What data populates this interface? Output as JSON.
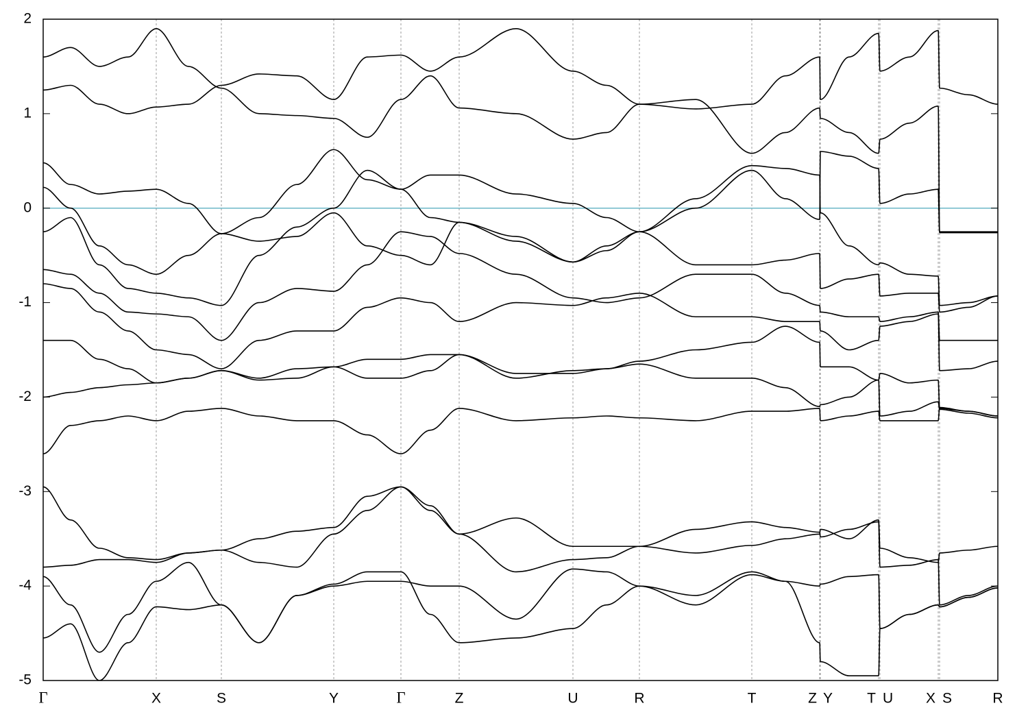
{
  "chart_data": {
    "type": "line",
    "color": "#000000",
    "grid": true,
    "hline": {
      "value": 0,
      "color": "#6bb7c7"
    },
    "xlim": [
      0,
      1393
    ],
    "ylim": [
      -5,
      2
    ],
    "yticks": [
      2,
      1,
      0,
      -1,
      -2,
      -3,
      -4,
      -5
    ],
    "xticks": [
      {
        "value": 0,
        "label": "Γ"
      },
      {
        "value": 165,
        "label": "X"
      },
      {
        "value": 260,
        "label": "S"
      },
      {
        "value": 424,
        "label": "Y"
      },
      {
        "value": 522,
        "label": "Γ"
      },
      {
        "value": 607,
        "label": "Z"
      },
      {
        "value": 773,
        "label": "U"
      },
      {
        "value": 870,
        "label": "R"
      },
      {
        "value": 1034,
        "label": "T"
      },
      {
        "value": 1133,
        "label": "Z"
      },
      {
        "value": 1134,
        "label": "Y"
      },
      {
        "value": 1219,
        "label": "T"
      },
      {
        "value": 1221,
        "label": "U"
      },
      {
        "value": 1306,
        "label": "X"
      },
      {
        "value": 1308,
        "label": "S"
      },
      {
        "value": 1393,
        "label": "R"
      }
    ],
    "x": [
      0,
      40,
      82,
      124,
      165,
      212,
      260,
      315,
      370,
      424,
      473,
      522,
      565,
      607,
      690,
      773,
      822,
      870,
      952,
      1034,
      1083,
      1133,
      1134,
      1176,
      1219,
      1221,
      1264,
      1306,
      1308,
      1350,
      1393
    ],
    "series": [
      {
        "values": [
          1.25,
          1.3,
          1.1,
          1.0,
          1.07,
          1.1,
          1.3,
          1.42,
          1.4,
          1.15,
          1.6,
          1.62,
          1.45,
          1.6,
          1.9,
          1.45,
          1.3,
          1.1,
          1.05,
          1.1,
          1.4,
          1.6,
          1.15,
          1.6,
          1.85,
          1.45,
          1.6,
          1.88,
          1.27,
          1.2,
          1.1
        ]
      },
      {
        "values": [
          1.6,
          1.7,
          1.5,
          1.6,
          1.9,
          1.5,
          1.27,
          1.0,
          0.98,
          0.95,
          0.75,
          1.15,
          1.4,
          1.06,
          1.0,
          0.73,
          0.8,
          1.1,
          1.15,
          0.58,
          0.8,
          1.06,
          0.95,
          0.8,
          0.58,
          0.73,
          0.9,
          1.08,
          -0.25,
          -0.25,
          -0.25
        ]
      },
      {
        "values": [
          0.48,
          0.25,
          0.15,
          0.18,
          0.2,
          0.05,
          -0.27,
          -0.1,
          0.25,
          0.62,
          0.3,
          0.2,
          0.35,
          0.35,
          0.15,
          0.05,
          -0.1,
          -0.25,
          0.0,
          0.4,
          0.1,
          -0.12,
          0.6,
          0.55,
          0.42,
          0.05,
          0.15,
          0.2,
          -0.26,
          -0.26,
          -0.26
        ]
      },
      {
        "values": [
          0.22,
          0.0,
          -0.4,
          -0.6,
          -0.7,
          -0.5,
          -0.27,
          -0.35,
          -0.3,
          -0.05,
          -0.4,
          -0.5,
          -0.6,
          -0.15,
          -0.35,
          -0.57,
          -0.45,
          -0.25,
          0.1,
          0.45,
          0.42,
          0.35,
          -0.05,
          -0.4,
          -0.6,
          -0.58,
          -0.7,
          -0.72,
          -1.03,
          -1.0,
          -0.93
        ]
      },
      {
        "values": [
          -0.25,
          -0.1,
          -0.6,
          -0.85,
          -0.9,
          -0.95,
          -1.03,
          -0.5,
          -0.2,
          0.0,
          0.4,
          0.2,
          -0.1,
          -0.15,
          -0.3,
          -0.57,
          -0.4,
          -0.25,
          -0.6,
          -0.6,
          -0.55,
          -0.48,
          -0.85,
          -0.75,
          -0.7,
          -0.93,
          -0.9,
          -0.9,
          -1.1,
          -1.05,
          -0.93
        ]
      },
      {
        "values": [
          -0.65,
          -0.7,
          -0.9,
          -1.1,
          -1.12,
          -1.15,
          -1.4,
          -1.0,
          -0.85,
          -0.88,
          -0.6,
          -0.25,
          -0.3,
          -0.48,
          -0.7,
          -0.95,
          -1.0,
          -0.95,
          -0.7,
          -0.7,
          -0.9,
          -1.03,
          -1.1,
          -1.15,
          -1.15,
          -1.2,
          -1.15,
          -1.1,
          -1.4,
          -1.4,
          -1.4
        ]
      },
      {
        "values": [
          -0.8,
          -0.85,
          -1.1,
          -1.3,
          -1.5,
          -1.55,
          -1.7,
          -1.4,
          -1.3,
          -1.3,
          -1.05,
          -0.95,
          -1.0,
          -1.2,
          -1.0,
          -1.03,
          -0.95,
          -0.9,
          -1.15,
          -1.15,
          -1.2,
          -1.2,
          -1.3,
          -1.5,
          -1.4,
          -1.25,
          -1.2,
          -1.12,
          -1.72,
          -1.7,
          -1.62
        ]
      },
      {
        "values": [
          -1.4,
          -1.4,
          -1.6,
          -1.7,
          -1.85,
          -1.8,
          -1.72,
          -1.8,
          -1.7,
          -1.68,
          -1.6,
          -1.6,
          -1.55,
          -1.55,
          -1.8,
          -1.72,
          -1.7,
          -1.62,
          -1.5,
          -1.42,
          -1.25,
          -1.42,
          -1.68,
          -1.68,
          -1.82,
          -1.75,
          -1.85,
          -1.82,
          -2.12,
          -2.15,
          -2.2
        ]
      },
      {
        "values": [
          -2.0,
          -1.95,
          -1.9,
          -1.87,
          -1.85,
          -1.8,
          -1.72,
          -1.82,
          -1.8,
          -1.68,
          -1.8,
          -1.8,
          -1.72,
          -1.55,
          -1.75,
          -1.75,
          -1.7,
          -1.65,
          -1.8,
          -1.8,
          -1.9,
          -2.1,
          -2.08,
          -2.0,
          -1.82,
          -2.2,
          -2.15,
          -2.05,
          -2.13,
          -2.17,
          -2.22
        ]
      },
      {
        "values": [
          -2.6,
          -2.3,
          -2.25,
          -2.2,
          -2.25,
          -2.15,
          -2.12,
          -2.2,
          -2.25,
          -2.25,
          -2.4,
          -2.6,
          -2.35,
          -2.12,
          -2.25,
          -2.22,
          -2.2,
          -2.22,
          -2.25,
          -2.15,
          -2.15,
          -2.12,
          -2.25,
          -2.2,
          -2.15,
          -2.25,
          -2.25,
          -2.25,
          -2.11,
          -2.15,
          -2.2
        ]
      },
      {
        "values": [
          -2.95,
          -3.3,
          -3.6,
          -3.7,
          -3.72,
          -3.65,
          -3.62,
          -3.75,
          -3.8,
          -3.45,
          -3.2,
          -2.95,
          -3.15,
          -3.45,
          -3.85,
          -3.72,
          -3.7,
          -3.58,
          -3.65,
          -3.57,
          -3.5,
          -3.45,
          -3.4,
          -3.5,
          -3.3,
          -3.6,
          -3.7,
          -3.75,
          -3.65,
          -3.62,
          -3.58
        ]
      },
      {
        "values": [
          -3.8,
          -3.78,
          -3.72,
          -3.72,
          -3.75,
          -3.65,
          -3.62,
          -3.5,
          -3.42,
          -3.38,
          -3.05,
          -2.95,
          -3.2,
          -3.45,
          -3.28,
          -3.58,
          -3.58,
          -3.58,
          -3.4,
          -3.32,
          -3.38,
          -3.43,
          -3.48,
          -3.4,
          -3.32,
          -3.8,
          -3.78,
          -3.72,
          -4.2,
          -4.1,
          -4.0
        ]
      },
      {
        "values": [
          -3.9,
          -4.2,
          -4.7,
          -4.3,
          -3.95,
          -3.75,
          -4.2,
          -4.6,
          -4.1,
          -4.0,
          -3.95,
          -3.95,
          -4.0,
          -4.0,
          -4.35,
          -3.82,
          -3.85,
          -4.0,
          -4.2,
          -3.88,
          -3.95,
          -4.0,
          -3.98,
          -3.9,
          -3.88,
          -4.45,
          -4.3,
          -4.2,
          -4.22,
          -4.12,
          -4.02
        ]
      },
      {
        "values": [
          -4.55,
          -4.4,
          -5.0,
          -4.6,
          -4.22,
          -4.25,
          -4.2,
          -4.6,
          -4.1,
          -3.98,
          -3.85,
          -3.85,
          -4.3,
          -4.6,
          -4.55,
          -4.45,
          -4.2,
          -4.0,
          -4.1,
          -3.85,
          -3.95,
          -4.6,
          -4.8,
          -4.95,
          -4.95,
          -4.45,
          -4.3,
          -4.2,
          -4.22,
          -4.12,
          -4.02
        ]
      }
    ]
  }
}
